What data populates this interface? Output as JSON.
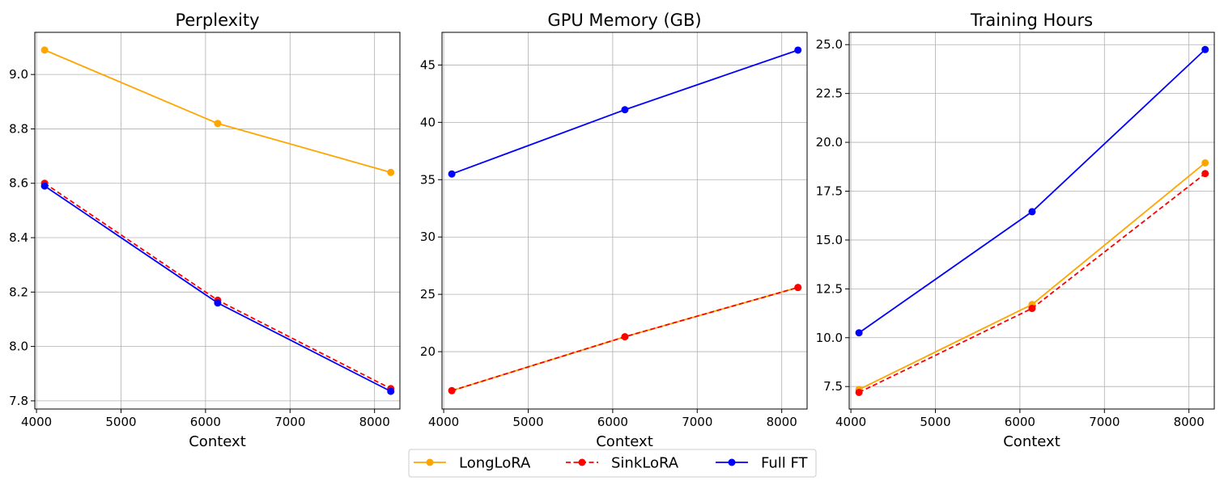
{
  "chart_data": [
    {
      "type": "line",
      "title": "Perplexity",
      "xlabel": "Context",
      "ylabel": "",
      "xlim": [
        3980,
        8300
      ],
      "ylim": [
        7.77,
        9.155
      ],
      "xticks": [
        4000,
        5000,
        6000,
        7000,
        8000
      ],
      "yticks": [
        7.8,
        8.0,
        8.2,
        8.4,
        8.6,
        8.8,
        9.0
      ],
      "ytick_labels": [
        "7.8",
        "8.0",
        "8.2",
        "8.4",
        "8.6",
        "8.8",
        "9.0"
      ],
      "grid": true,
      "x": [
        4096,
        6144,
        8192
      ],
      "series": [
        {
          "name": "LongLoRA",
          "values": [
            9.09,
            8.82,
            8.64
          ]
        },
        {
          "name": "SinkLoRA",
          "values": [
            8.6,
            8.17,
            7.845
          ]
        },
        {
          "name": "Full FT",
          "values": [
            8.59,
            8.16,
            7.835
          ]
        }
      ]
    },
    {
      "type": "line",
      "title": "GPU Memory (GB)",
      "xlabel": "Context",
      "ylabel": "",
      "xlim": [
        3980,
        8300
      ],
      "ylim": [
        15.0,
        47.85
      ],
      "xticks": [
        4000,
        5000,
        6000,
        7000,
        8000
      ],
      "yticks": [
        20,
        25,
        30,
        35,
        40,
        45
      ],
      "ytick_labels": [
        "20",
        "25",
        "30",
        "35",
        "40",
        "45"
      ],
      "grid": true,
      "x": [
        4096,
        6144,
        8192
      ],
      "series": [
        {
          "name": "LongLoRA",
          "values": [
            16.6,
            21.3,
            25.6
          ]
        },
        {
          "name": "SinkLoRA",
          "values": [
            16.6,
            21.3,
            25.6
          ]
        },
        {
          "name": "Full FT",
          "values": [
            35.5,
            41.1,
            46.3
          ]
        }
      ]
    },
    {
      "type": "line",
      "title": "Training Hours",
      "xlabel": "Context",
      "ylabel": "",
      "xlim": [
        3980,
        8300
      ],
      "ylim": [
        6.35,
        25.63
      ],
      "xticks": [
        4000,
        5000,
        6000,
        7000,
        8000
      ],
      "yticks": [
        7.5,
        10.0,
        12.5,
        15.0,
        17.5,
        20.0,
        22.5,
        25.0
      ],
      "ytick_labels": [
        "7.5",
        "10.0",
        "12.5",
        "15.0",
        "17.5",
        "20.0",
        "22.5",
        "25.0"
      ],
      "grid": true,
      "x": [
        4096,
        6144,
        8192
      ],
      "series": [
        {
          "name": "LongLoRA",
          "values": [
            7.35,
            11.7,
            18.95
          ]
        },
        {
          "name": "SinkLoRA",
          "values": [
            7.2,
            11.5,
            18.4
          ]
        },
        {
          "name": "Full FT",
          "values": [
            10.25,
            16.45,
            24.75
          ]
        }
      ]
    }
  ],
  "legend": {
    "placement": "bottom-center",
    "entries": [
      {
        "label": "LongLoRA",
        "color": "#ffa500",
        "dash": "solid",
        "marker": "circle"
      },
      {
        "label": "SinkLoRA",
        "color": "#ff0000",
        "dash": "dashed",
        "marker": "circle"
      },
      {
        "label": "Full FT",
        "color": "#0000ff",
        "dash": "solid",
        "marker": "circle"
      }
    ]
  },
  "series_colors": {
    "LongLoRA": "#ffa500",
    "SinkLoRA": "#ff0000",
    "Full FT": "#0000ff"
  }
}
